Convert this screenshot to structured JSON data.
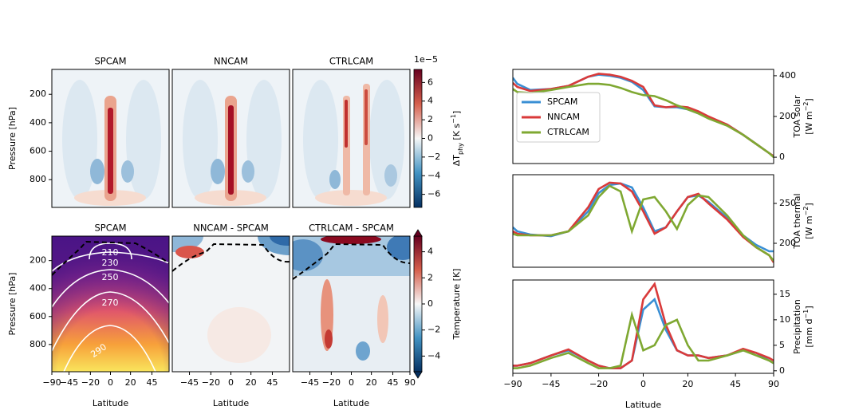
{
  "chart_data": [
    {
      "type": "contour",
      "title": "SPCAM",
      "ylabel": "Pressure [hPa]",
      "ylim": [
        25,
        995
      ],
      "yticks": [
        200,
        400,
        600,
        800
      ]
    },
    {
      "type": "contour",
      "title": "NNCAM",
      "ylim": [
        25,
        995
      ]
    },
    {
      "type": "contour",
      "title": "CTRLCAM",
      "ylim": [
        25,
        995
      ]
    },
    {
      "type": "contour",
      "title": "SPCAM",
      "ylabel": "Pressure [hPa]",
      "ylim": [
        25,
        995
      ],
      "yticks": [
        200,
        400,
        600,
        800
      ],
      "xlabel": "Latitude",
      "xlim": [
        -90,
        90
      ],
      "xscale": "sine",
      "xticks": [
        {
          "value": -90,
          "label": "−90"
        },
        {
          "value": -45,
          "label": "−45"
        },
        {
          "value": -20,
          "label": "−20"
        },
        0,
        20,
        45
      ],
      "contour_labels": [
        210,
        230,
        250,
        270,
        290
      ]
    },
    {
      "type": "contour",
      "title": "NNCAM - SPCAM",
      "ylim": [
        25,
        995
      ],
      "xlabel": "Latitude",
      "xlim": [
        -90,
        90
      ],
      "xscale": "sine",
      "xticks": [
        {
          "value": -45,
          "label": "−45"
        },
        {
          "value": -20,
          "label": "−20"
        },
        0,
        20,
        45
      ]
    },
    {
      "type": "contour",
      "title": "CTRLCAM - SPCAM",
      "ylim": [
        25,
        995
      ],
      "xlabel": "Latitude",
      "xlim": [
        -90,
        90
      ],
      "xscale": "sine",
      "xticks": [
        {
          "value": -45,
          "label": "−45"
        },
        {
          "value": -20,
          "label": "−20"
        },
        0,
        20,
        45,
        90
      ]
    },
    {
      "type": "colorbar",
      "offset": "1e−5",
      "label": [
        "ΔT",
        "phy",
        " [K s",
        "−1",
        "]"
      ],
      "clim": [
        -7.4,
        7.4
      ],
      "ticks": [
        6,
        4,
        2,
        0,
        {
          "value": -2,
          "label": "−2"
        },
        {
          "value": -4,
          "label": "−4"
        },
        {
          "value": -6,
          "label": "−6"
        }
      ]
    },
    {
      "type": "colorbar",
      "label": [
        "Temperature [K]"
      ],
      "clim": [
        -5.2,
        5.2
      ],
      "extend": "both",
      "ticks": [
        4,
        2,
        0,
        {
          "value": -2,
          "label": "−2"
        },
        {
          "value": -4,
          "label": "−4"
        }
      ]
    },
    {
      "type": "line",
      "ylabel": [
        "TOA solar",
        "[W m",
        "−2",
        "]"
      ],
      "ylim": [
        -31,
        431
      ],
      "yticks": [
        0,
        200,
        400
      ],
      "xlim": [
        -90,
        90
      ],
      "xscale": "sine",
      "legend": "center left",
      "x": [
        -90,
        -75,
        -60,
        -45,
        -35,
        -25,
        -20,
        -15,
        -10,
        -5,
        0,
        5,
        10,
        15,
        20,
        25,
        30,
        40,
        50,
        60,
        75,
        90
      ],
      "series": [
        {
          "name": "SPCAM",
          "color": "#3a8fd4",
          "values": [
            390,
            360,
            330,
            335,
            350,
            395,
            405,
            400,
            390,
            370,
            330,
            250,
            245,
            245,
            235,
            215,
            195,
            160,
            110,
            65,
            20,
            5
          ]
        },
        {
          "name": "NNCAM",
          "color": "#d93a3a",
          "values": [
            365,
            345,
            325,
            335,
            350,
            395,
            410,
            405,
            395,
            375,
            345,
            255,
            245,
            250,
            245,
            225,
            200,
            160,
            110,
            65,
            20,
            5
          ]
        },
        {
          "name": "CTRLCAM",
          "color": "#7fa832",
          "values": [
            335,
            320,
            315,
            330,
            345,
            360,
            360,
            355,
            340,
            320,
            305,
            300,
            280,
            255,
            235,
            215,
            190,
            155,
            110,
            65,
            20,
            0
          ]
        }
      ]
    },
    {
      "type": "line",
      "ylabel": [
        "TOA thermal",
        "[W m",
        "−2",
        "]"
      ],
      "ylim": [
        170,
        286
      ],
      "yticks": [
        200,
        250
      ],
      "xlim": [
        -90,
        90
      ],
      "xscale": "sine",
      "x": [
        -90,
        -75,
        -60,
        -45,
        -35,
        -25,
        -20,
        -15,
        -10,
        -5,
        0,
        5,
        10,
        15,
        20,
        25,
        30,
        40,
        50,
        60,
        75,
        90
      ],
      "series": [
        {
          "name": "SPCAM",
          "color": "#3a8fd4",
          "values": [
            220,
            215,
            211,
            209,
            215,
            240,
            263,
            273,
            275,
            270,
            245,
            215,
            220,
            240,
            258,
            260,
            252,
            232,
            210,
            198,
            190,
            190
          ]
        },
        {
          "name": "NNCAM",
          "color": "#d93a3a",
          "values": [
            215,
            212,
            210,
            210,
            215,
            245,
            268,
            276,
            275,
            265,
            240,
            212,
            220,
            240,
            258,
            262,
            250,
            230,
            208,
            195,
            185,
            176
          ]
        },
        {
          "name": "CTRLCAM",
          "color": "#7fa832",
          "values": [
            212,
            210,
            210,
            210,
            215,
            235,
            258,
            272,
            265,
            215,
            255,
            258,
            240,
            218,
            248,
            260,
            258,
            235,
            210,
            195,
            185,
            178
          ]
        }
      ]
    },
    {
      "type": "line",
      "ylabel": [
        "Precipitation",
        "[mm d",
        "−1",
        "]"
      ],
      "ylim": [
        -0.5,
        17.8
      ],
      "yticks": [
        0,
        5,
        10,
        15
      ],
      "xlim": [
        -90,
        90
      ],
      "xscale": "sine",
      "xlabel": "Latitude",
      "xticks": [
        {
          "value": -90,
          "label": "−90"
        },
        {
          "value": -45,
          "label": "−45"
        },
        {
          "value": -20,
          "label": "−20"
        },
        0,
        20,
        45,
        90
      ],
      "x": [
        -90,
        -75,
        -60,
        -45,
        -35,
        -25,
        -20,
        -15,
        -10,
        -5,
        0,
        5,
        10,
        15,
        20,
        25,
        30,
        40,
        50,
        60,
        75,
        90
      ],
      "series": [
        {
          "name": "SPCAM",
          "color": "#3a8fd4",
          "values": [
            1,
            1,
            1.5,
            3,
            4,
            2,
            1,
            0.5,
            0.5,
            2,
            12,
            14,
            8,
            4,
            3,
            3,
            2.5,
            3,
            4,
            3.5,
            2,
            1.5
          ]
        },
        {
          "name": "NNCAM",
          "color": "#d93a3a",
          "values": [
            1,
            1,
            1.5,
            3,
            4.2,
            2,
            1,
            0.5,
            0.5,
            2,
            14,
            17,
            9,
            4,
            3,
            3,
            2.5,
            3,
            4.3,
            3.5,
            2.5,
            2
          ]
        },
        {
          "name": "CTRLCAM",
          "color": "#7fa832",
          "values": [
            0.5,
            0.5,
            1,
            2.5,
            3.5,
            1.5,
            0.5,
            0.5,
            1,
            11,
            4,
            5,
            9,
            10,
            5,
            2,
            2,
            3,
            4,
            3,
            2,
            1.5
          ]
        }
      ]
    }
  ]
}
